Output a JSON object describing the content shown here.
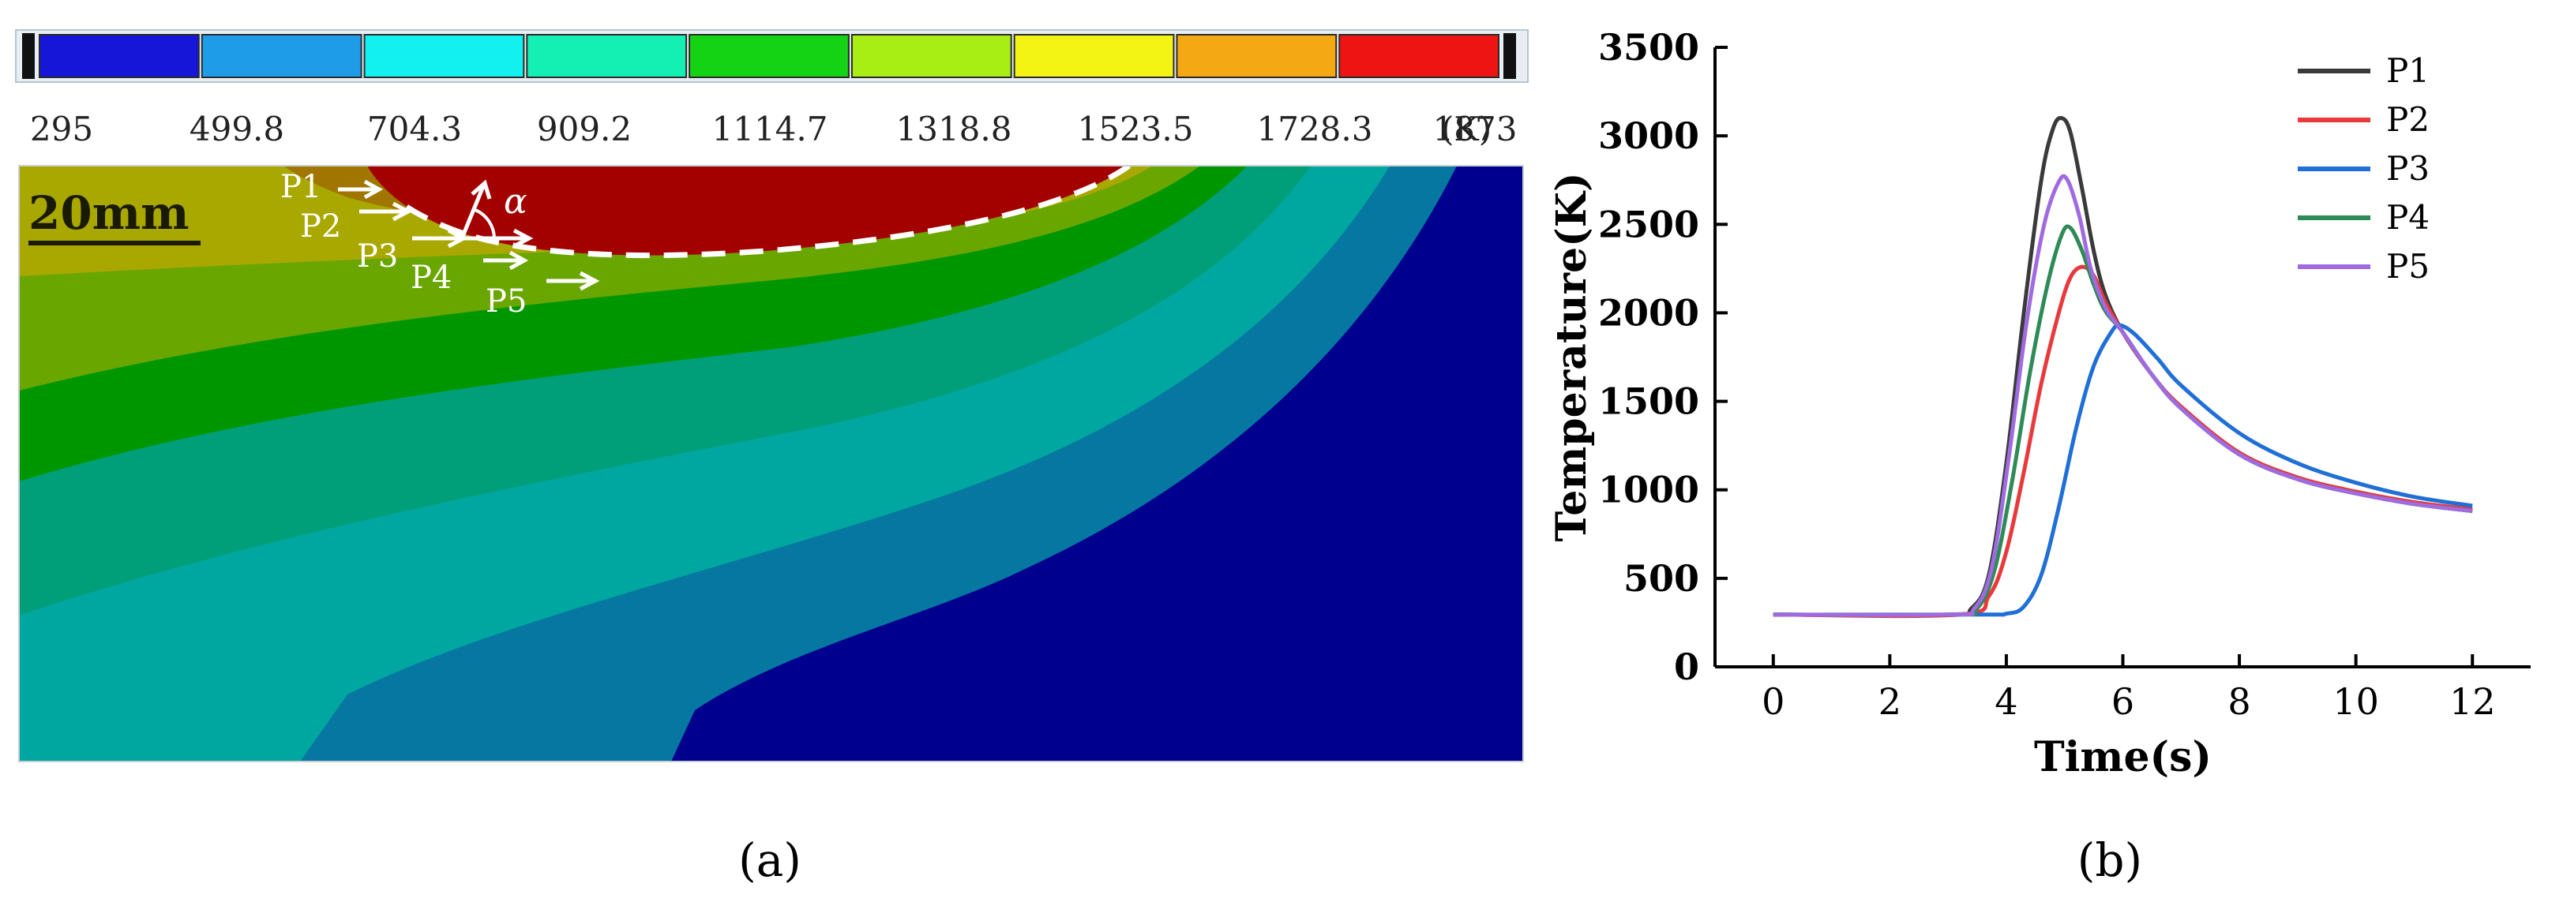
{
  "panel_a": {
    "label": "(a)",
    "scale_label": "20mm",
    "unit_label": "(K)",
    "alpha_label": "α",
    "colorbar": {
      "colors": [
        "#1616d8",
        "#1e9ce8",
        "#12f0f0",
        "#14f0b4",
        "#14d214",
        "#a8ee14",
        "#f4f414",
        "#f4a814",
        "#ee1414"
      ],
      "values": [
        "295",
        "499.8",
        "704.3",
        "909.2",
        "1114.7",
        "1318.8",
        "1523.5",
        "1728.3",
        "1873"
      ]
    },
    "contour_colors": [
      "#00008e",
      "#0577a0",
      "#00a7a0",
      "#009f7a",
      "#009600",
      "#6aa600",
      "#a9a800",
      "#a07600",
      "#a30000"
    ],
    "points": [
      {
        "name": "P1"
      },
      {
        "name": "P2"
      },
      {
        "name": "P3"
      },
      {
        "name": "P4"
      },
      {
        "name": "P5"
      }
    ]
  },
  "panel_b": {
    "label": "(b)",
    "chart_data": {
      "type": "line",
      "xlabel": "Time(s)",
      "ylabel": "Temperature(K)",
      "xlim": [
        -1,
        13
      ],
      "ylim": [
        0,
        3500
      ],
      "xticks": [
        0,
        2,
        4,
        6,
        8,
        10,
        12
      ],
      "yticks": [
        0,
        500,
        1000,
        1500,
        2000,
        2500,
        3000,
        3500
      ],
      "legend_position": "top-right",
      "grid": false,
      "series": [
        {
          "name": "P1",
          "color": "#3a3a3a",
          "x": [
            0,
            3.0,
            3.4,
            3.7,
            4.0,
            4.3,
            4.6,
            4.8,
            4.95,
            5.1,
            5.3,
            5.5,
            5.7,
            6.0,
            6.5,
            7.0,
            8.0,
            9.0,
            10.0,
            11.0,
            12.0
          ],
          "y": [
            295,
            295,
            330,
            520,
            1150,
            2000,
            2750,
            3040,
            3100,
            3020,
            2700,
            2350,
            2100,
            1890,
            1650,
            1460,
            1200,
            1060,
            980,
            920,
            880
          ]
        },
        {
          "name": "P2",
          "color": "#e8393b",
          "x": [
            0,
            3.2,
            3.7,
            4.0,
            4.3,
            4.6,
            4.9,
            5.1,
            5.3,
            5.5,
            5.7,
            6.0,
            6.5,
            7.0,
            8.0,
            9.0,
            10.0,
            11.0,
            12.0
          ],
          "y": [
            295,
            295,
            400,
            650,
            1100,
            1600,
            2000,
            2200,
            2260,
            2210,
            2060,
            1890,
            1650,
            1470,
            1210,
            1070,
            990,
            930,
            890
          ]
        },
        {
          "name": "P3",
          "color": "#1f6fd6",
          "x": [
            0,
            3.5,
            4.0,
            4.3,
            4.6,
            4.9,
            5.2,
            5.5,
            5.8,
            5.95,
            6.2,
            6.6,
            7.0,
            8.0,
            9.0,
            10.0,
            11.0,
            12.0
          ],
          "y": [
            295,
            295,
            300,
            340,
            520,
            900,
            1350,
            1700,
            1890,
            1930,
            1880,
            1740,
            1590,
            1320,
            1150,
            1040,
            960,
            910
          ]
        },
        {
          "name": "P4",
          "color": "#2e8b57",
          "x": [
            0,
            3.1,
            3.5,
            3.8,
            4.1,
            4.4,
            4.7,
            4.95,
            5.1,
            5.3,
            5.5,
            5.7,
            6.0,
            6.5,
            7.0,
            8.0,
            9.0,
            10.0,
            11.0,
            12.0
          ],
          "y": [
            295,
            295,
            330,
            550,
            1050,
            1650,
            2150,
            2440,
            2480,
            2350,
            2160,
            2010,
            1890,
            1650,
            1460,
            1200,
            1060,
            980,
            920,
            880
          ]
        },
        {
          "name": "P5",
          "color": "#a06be0",
          "x": [
            0,
            3.05,
            3.45,
            3.75,
            4.05,
            4.35,
            4.65,
            4.9,
            5.05,
            5.25,
            5.45,
            5.7,
            6.0,
            6.5,
            7.0,
            8.0,
            9.0,
            10.0,
            11.0,
            12.0
          ],
          "y": [
            295,
            295,
            330,
            560,
            1200,
            1950,
            2500,
            2740,
            2750,
            2550,
            2250,
            2030,
            1890,
            1650,
            1460,
            1200,
            1060,
            980,
            920,
            880
          ]
        }
      ]
    }
  }
}
